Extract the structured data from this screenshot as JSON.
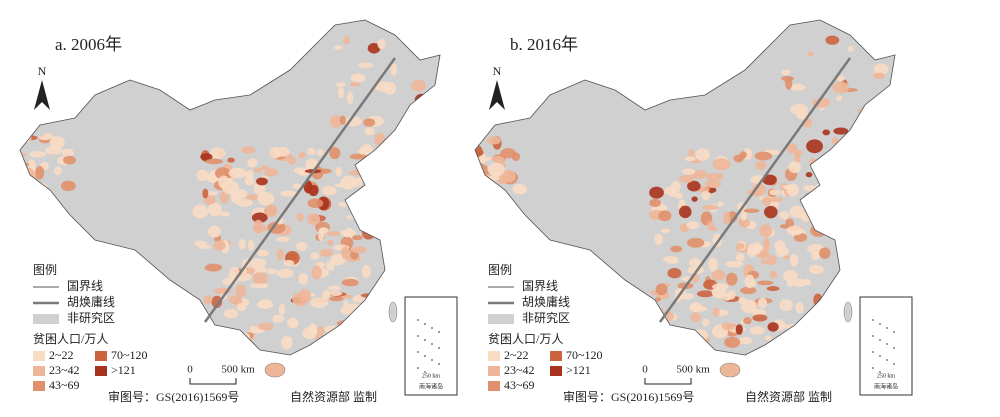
{
  "panels": [
    {
      "title": "a. 2006年"
    },
    {
      "title": "b. 2016年"
    }
  ],
  "north": "N",
  "legend": {
    "title": "图例",
    "lines": [
      {
        "label": "国界线",
        "color": "#555555"
      },
      {
        "label": "胡焕庸线",
        "color": "#7a7a7a"
      },
      {
        "label": "非研究区",
        "color": "#d0d0d0"
      }
    ],
    "classes_title": "贫困人口/万人",
    "classes": [
      {
        "label": "2~22",
        "color": "#f8dcc4"
      },
      {
        "label": "23~42",
        "color": "#eeb698"
      },
      {
        "label": "43~69",
        "color": "#e0906c"
      },
      {
        "label": "70~120",
        "color": "#cc6440"
      },
      {
        "label": ">121",
        "color": "#a8321c"
      }
    ]
  },
  "scale": {
    "zero": "0",
    "label": "500 km"
  },
  "inset": {
    "scale": "250 km",
    "label": "南海诸岛"
  },
  "footer": {
    "approval": "审图号：GS(2016)1569号",
    "supervisor": "自然资源部 监制"
  }
}
